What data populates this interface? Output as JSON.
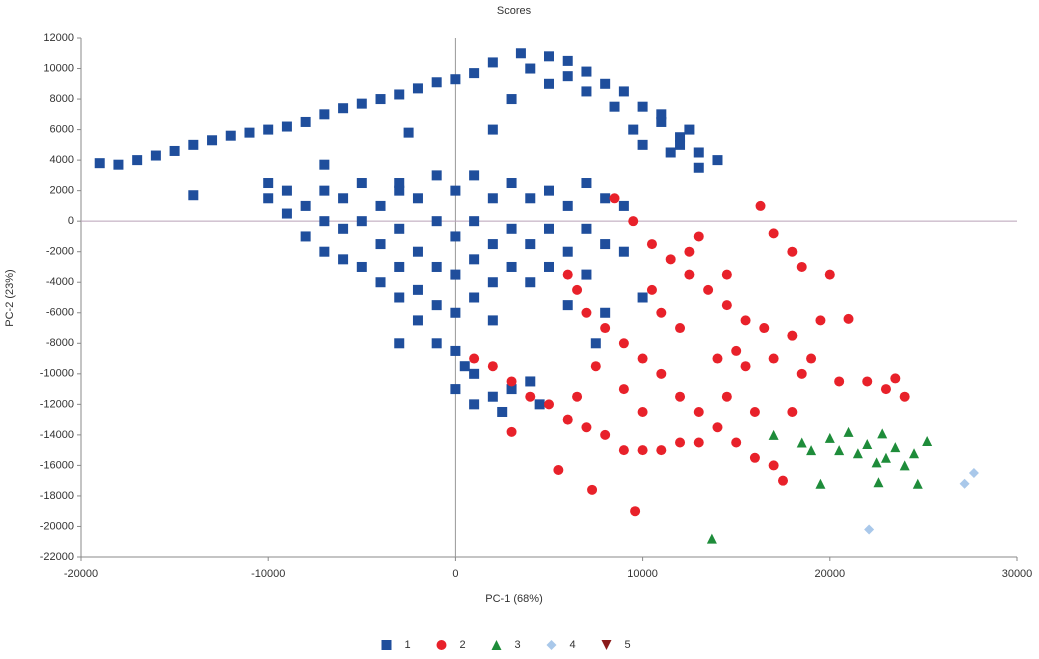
{
  "chart_data": {
    "type": "scatter",
    "title": "Scores",
    "x_label": "PC-1 (68%)",
    "y_label": "PC-2 (23%)",
    "xlim": [
      -20000,
      30000
    ],
    "xticks": [
      -20000,
      -10000,
      0,
      10000,
      20000,
      30000
    ],
    "ylim": [
      -22000,
      12000
    ],
    "yticks": [
      -22000,
      -20000,
      -18000,
      -16000,
      -14000,
      -12000,
      -10000,
      -8000,
      -6000,
      -4000,
      -2000,
      0,
      2000,
      4000,
      6000,
      8000,
      10000,
      12000
    ],
    "series": [
      {
        "name": "1",
        "color": "#1f4e9c",
        "marker": "square",
        "x": [
          -19000,
          -18000,
          -17000,
          -16000,
          -15000,
          -14000,
          -13000,
          -12000,
          -11000,
          -10000,
          -9000,
          -8000,
          -7000,
          -6000,
          -5000,
          -4000,
          -3000,
          -2000,
          -1000,
          0,
          1000,
          2000,
          3500,
          5000,
          6000,
          7000,
          8000,
          9000,
          10000,
          11000,
          12000,
          13000,
          14000,
          13000,
          12000,
          11000,
          8500,
          7000,
          6000,
          5000,
          9500,
          12500,
          10000,
          11500,
          4000,
          3000,
          2000,
          -2500,
          -14000,
          -7000,
          -3000,
          -10000,
          -10000,
          -9000,
          -9000,
          -8000,
          -8000,
          -7000,
          -7000,
          -7000,
          -6000,
          -6000,
          -6000,
          -5000,
          -5000,
          -5000,
          -4000,
          -4000,
          -4000,
          -3000,
          -3000,
          -3000,
          -3000,
          -2000,
          -2000,
          -2000,
          -2000,
          -1000,
          -1000,
          -1000,
          -1000,
          -1000,
          0,
          0,
          0,
          0,
          1000,
          1000,
          1000,
          1000,
          2000,
          2000,
          2000,
          2000,
          3000,
          3000,
          3000,
          4000,
          4000,
          4000,
          5000,
          5000,
          5000,
          6000,
          6000,
          7000,
          7000,
          7000,
          8000,
          8000,
          8000,
          9000,
          10000,
          7500,
          6000,
          9000,
          0,
          500,
          1000,
          0,
          1000,
          2000,
          3000,
          4000,
          2500,
          4500,
          -3000
        ],
        "y": [
          3800,
          3700,
          4000,
          4300,
          4600,
          5000,
          5300,
          5600,
          5800,
          6000,
          6200,
          6500,
          7000,
          7400,
          7700,
          8000,
          8300,
          8700,
          9100,
          9300,
          9700,
          10400,
          11000,
          10800,
          10500,
          9800,
          9000,
          8500,
          7500,
          6500,
          5500,
          4500,
          4000,
          3500,
          5000,
          7000,
          7500,
          8500,
          9500,
          9000,
          6000,
          6000,
          5000,
          4500,
          10000,
          8000,
          6000,
          5800,
          1700,
          3700,
          2000,
          2500,
          1500,
          2000,
          500,
          1000,
          -1000,
          2000,
          0,
          -2000,
          1500,
          -500,
          -2500,
          2500,
          0,
          -3000,
          1000,
          -1500,
          -4000,
          2500,
          -500,
          -3000,
          -5000,
          1500,
          -2000,
          -4500,
          -6500,
          3000,
          0,
          -3000,
          -5500,
          -8000,
          2000,
          -1000,
          -3500,
          -6000,
          3000,
          0,
          -2500,
          -5000,
          1500,
          -1500,
          -4000,
          -6500,
          2500,
          -500,
          -3000,
          1500,
          -1500,
          -4000,
          2000,
          -500,
          -3000,
          1000,
          -2000,
          2500,
          -500,
          -3500,
          1500,
          -1500,
          -6000,
          -2000,
          -5000,
          -8000,
          -5500,
          1000,
          -8500,
          -9500,
          -10000,
          -11000,
          -12000,
          -11500,
          -11000,
          -10500,
          -12500,
          -12000,
          -8000
        ]
      },
      {
        "name": "2",
        "color": "#e8212a",
        "marker": "circle",
        "x": [
          16300,
          17000,
          18000,
          18500,
          20000,
          8500,
          9500,
          10500,
          11500,
          12500,
          13500,
          14500,
          15500,
          16500,
          18000,
          19000,
          21000,
          19500,
          6000,
          6500,
          7000,
          8000,
          9000,
          10000,
          11000,
          12000,
          13000,
          14000,
          15000,
          16000,
          17000,
          17500,
          1000,
          2000,
          3000,
          4000,
          5000,
          6000,
          7000,
          8000,
          9000,
          10000,
          11000,
          12000,
          13000,
          5500,
          7300,
          9600,
          3000,
          22000,
          23000,
          23500,
          24000,
          20500,
          18500,
          15000,
          14000,
          12000,
          10500,
          11000,
          12500,
          13000,
          14500,
          15500,
          17000,
          16000,
          18000,
          14500,
          10000,
          9000,
          7500,
          6500
        ],
        "y": [
          1000,
          -800,
          -2000,
          -3000,
          -3500,
          1500,
          0,
          -1500,
          -2500,
          -3500,
          -4500,
          -5500,
          -6500,
          -7000,
          -7500,
          -9000,
          -6400,
          -6500,
          -3500,
          -4500,
          -6000,
          -7000,
          -8000,
          -9000,
          -10000,
          -11500,
          -12500,
          -13500,
          -14500,
          -15500,
          -16000,
          -17000,
          -9000,
          -9500,
          -10500,
          -11500,
          -12000,
          -13000,
          -13500,
          -14000,
          -15000,
          -15000,
          -15000,
          -14500,
          -14500,
          -16300,
          -17600,
          -19000,
          -13800,
          -10500,
          -11000,
          -10300,
          -11500,
          -10500,
          -10000,
          -8500,
          -9000,
          -7000,
          -4500,
          -6000,
          -2000,
          -1000,
          -3500,
          -9500,
          -9000,
          -12500,
          -12500,
          -11500,
          -12500,
          -11000,
          -9500,
          -11500
        ]
      },
      {
        "name": "3",
        "color": "#1e8c3a",
        "marker": "triangle",
        "x": [
          13700,
          18500,
          19000,
          19500,
          20000,
          20500,
          21000,
          21500,
          22000,
          22500,
          22800,
          23000,
          23500,
          24000,
          24500,
          25200,
          22600,
          24700,
          17000
        ],
        "y": [
          -20800,
          -14500,
          -15000,
          -17200,
          -14200,
          -15000,
          -13800,
          -15200,
          -14600,
          -15800,
          -13900,
          -15500,
          -14800,
          -16000,
          -15200,
          -14400,
          -17100,
          -17200,
          -14000
        ]
      },
      {
        "name": "4",
        "color": "#a9c8ea",
        "marker": "diamond",
        "x": [
          22100,
          27200,
          27700
        ],
        "y": [
          -20200,
          -17200,
          -16500
        ]
      },
      {
        "name": "5",
        "color": "#8b1a1a",
        "marker": "down-triangle",
        "x": [],
        "y": []
      }
    ]
  }
}
